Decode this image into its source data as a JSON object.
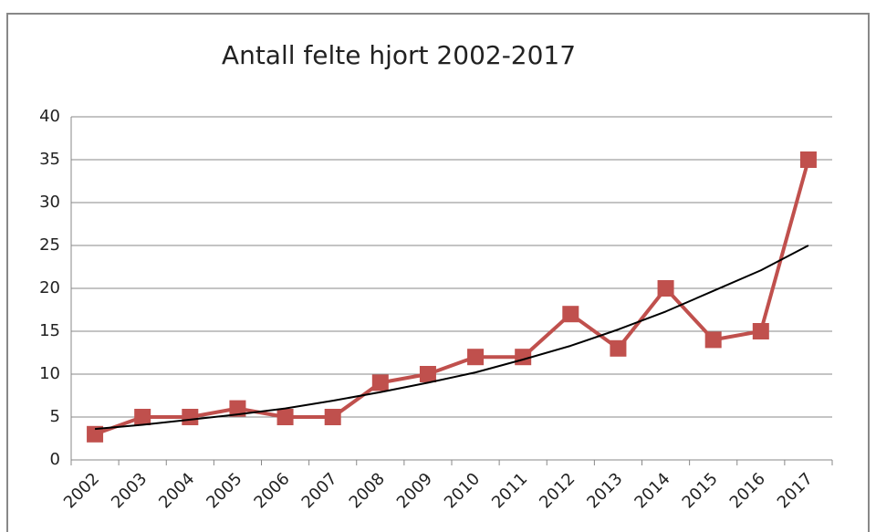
{
  "chart_data": {
    "type": "line",
    "title": "Antall felte hjort 2002-2017",
    "categories": [
      "2002",
      "2003",
      "2004",
      "2005",
      "2006",
      "2007",
      "2008",
      "2009",
      "2010",
      "2011",
      "2012",
      "2013",
      "2014",
      "2015",
      "2016",
      "2017"
    ],
    "series": [
      {
        "color": "#c0504d",
        "values": [
          3,
          5,
          5,
          6,
          5,
          5,
          9,
          10,
          12,
          12,
          17,
          13,
          20,
          14,
          15,
          35
        ]
      }
    ],
    "trendline": {
      "color": "#000000",
      "values": [
        3.6,
        4.1,
        4.7,
        5.3,
        6.0,
        6.9,
        7.9,
        9.0,
        10.2,
        11.7,
        13.3,
        15.2,
        17.3,
        19.7,
        22.1,
        25.0
      ]
    },
    "ylim": [
      0,
      40
    ],
    "yticks": [
      0,
      5,
      10,
      15,
      20,
      25,
      30,
      35,
      40
    ],
    "grid": true
  }
}
